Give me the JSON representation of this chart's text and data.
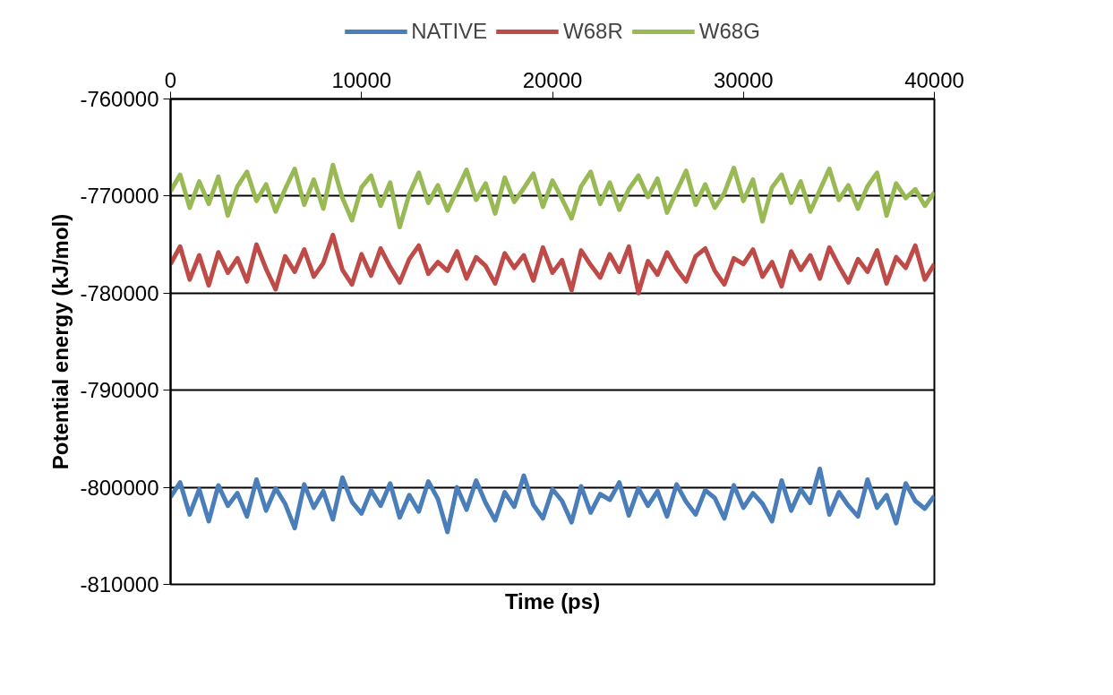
{
  "chart_data": {
    "type": "line",
    "xlabel": "Time (ps)",
    "ylabel": "Potential energy (kJ/mol)",
    "x": [
      0,
      500,
      1000,
      1500,
      2000,
      2500,
      3000,
      3500,
      4000,
      4500,
      5000,
      5500,
      6000,
      6500,
      7000,
      7500,
      8000,
      8500,
      9000,
      9500,
      10000,
      10500,
      11000,
      11500,
      12000,
      12500,
      13000,
      13500,
      14000,
      14500,
      15000,
      15500,
      16000,
      16500,
      17000,
      17500,
      18000,
      18500,
      19000,
      19500,
      20000,
      20500,
      21000,
      21500,
      22000,
      22500,
      23000,
      23500,
      24000,
      24500,
      25000,
      25500,
      26000,
      26500,
      27000,
      27500,
      28000,
      28500,
      29000,
      29500,
      30000,
      30500,
      31000,
      31500,
      32000,
      32500,
      33000,
      33500,
      34000,
      34500,
      35000,
      35500,
      36000,
      36500,
      37000,
      37500,
      38000,
      38500,
      39000,
      39500,
      40000
    ],
    "series": [
      {
        "name": "NATIVE",
        "color": "#4a7ebb",
        "values": [
          -801000,
          -799500,
          -802800,
          -800200,
          -803500,
          -799800,
          -801900,
          -800600,
          -803000,
          -799200,
          -802400,
          -800100,
          -801700,
          -804200,
          -799700,
          -802100,
          -800400,
          -803300,
          -799000,
          -801500,
          -802700,
          -800300,
          -801900,
          -799600,
          -803100,
          -800800,
          -802500,
          -799400,
          -801200,
          -804600,
          -800000,
          -802300,
          -799300,
          -801600,
          -803400,
          -800500,
          -802000,
          -798800,
          -801800,
          -803200,
          -800200,
          -801400,
          -803600,
          -799900,
          -802600,
          -800700,
          -801300,
          -799500,
          -802900,
          -800100,
          -801900,
          -800400,
          -803000,
          -799700,
          -801500,
          -802800,
          -800300,
          -801100,
          -803200,
          -799800,
          -802100,
          -800600,
          -801700,
          -803500,
          -799300,
          -802400,
          -800200,
          -801600,
          -798100,
          -802800,
          -800500,
          -801900,
          -803000,
          -799200,
          -802100,
          -800800,
          -803700,
          -799600,
          -801400,
          -802200,
          -800900
        ]
      },
      {
        "name": "W68R",
        "color": "#be4b48",
        "values": [
          -777000,
          -775200,
          -778600,
          -776100,
          -779200,
          -775800,
          -777900,
          -776400,
          -778800,
          -775000,
          -777500,
          -779600,
          -776200,
          -777800,
          -775500,
          -778300,
          -776900,
          -774000,
          -777600,
          -779100,
          -776000,
          -778200,
          -775400,
          -777300,
          -778900,
          -776500,
          -775100,
          -778000,
          -776800,
          -777700,
          -775700,
          -778500,
          -776300,
          -777200,
          -779000,
          -775900,
          -777400,
          -776100,
          -778700,
          -775300,
          -777900,
          -776600,
          -779700,
          -775600,
          -777100,
          -778400,
          -776000,
          -777800,
          -775200,
          -780000,
          -776700,
          -778100,
          -775800,
          -777500,
          -778800,
          -776200,
          -775400,
          -777700,
          -779100,
          -776400,
          -777000,
          -775500,
          -778300,
          -776800,
          -779300,
          -775700,
          -777600,
          -776100,
          -778500,
          -775300,
          -777200,
          -778900,
          -776500,
          -777800,
          -775600,
          -779000,
          -776300,
          -777400,
          -775100,
          -778600,
          -777000
        ]
      },
      {
        "name": "W68G",
        "color": "#98b954",
        "values": [
          -769500,
          -767800,
          -771200,
          -768500,
          -770800,
          -768000,
          -772000,
          -769000,
          -767500,
          -770500,
          -768800,
          -771600,
          -769300,
          -767200,
          -770900,
          -768300,
          -771300,
          -766800,
          -770200,
          -772500,
          -769100,
          -767900,
          -771000,
          -768600,
          -773200,
          -769800,
          -767600,
          -770700,
          -768900,
          -771500,
          -769400,
          -767300,
          -770400,
          -768700,
          -771800,
          -768100,
          -770600,
          -769200,
          -767700,
          -771100,
          -768400,
          -770300,
          -772300,
          -769000,
          -767500,
          -770800,
          -768600,
          -771400,
          -769300,
          -767900,
          -770100,
          -768200,
          -771700,
          -769500,
          -767400,
          -770900,
          -768800,
          -771200,
          -769700,
          -767100,
          -770500,
          -768300,
          -772600,
          -769100,
          -767800,
          -770700,
          -768500,
          -771600,
          -769400,
          -767200,
          -770400,
          -768900,
          -771300,
          -769000,
          -767600,
          -772000,
          -768700,
          -770200,
          -769300,
          -771000,
          -769600
        ]
      }
    ],
    "xlim": [
      0,
      40000
    ],
    "xticks": [
      0,
      10000,
      20000,
      30000,
      40000
    ],
    "ylim": [
      -810000,
      -760000
    ],
    "yticks": [
      -810000,
      -800000,
      -790000,
      -780000,
      -770000,
      -760000
    ],
    "grid": "y",
    "legend": "top"
  }
}
